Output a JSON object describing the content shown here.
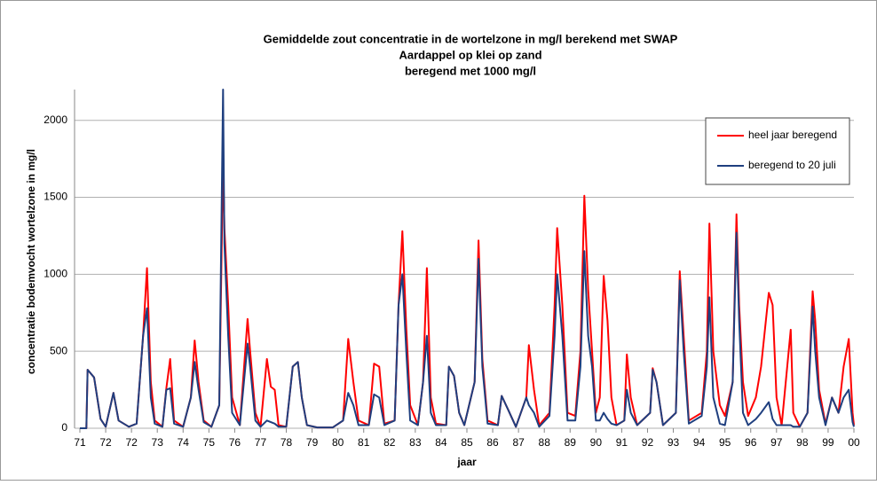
{
  "chart_data": {
    "type": "line",
    "title": "Gemiddelde zout concentratie in de wortelzone in mg/l berekend met SWAP",
    "subtitle": [
      "Aardappel op klei op zand",
      "beregend met  1000 mg/l"
    ],
    "xlabel": "jaar",
    "ylabel": "concentratie bodemvocht wortelzone in mg/l",
    "xlim": [
      0,
      30
    ],
    "xticks": [
      {
        "value": 0,
        "label": "71"
      },
      {
        "value": 1,
        "label": "72"
      },
      {
        "value": 2,
        "label": "72"
      },
      {
        "value": 3,
        "label": "73"
      },
      {
        "value": 4,
        "label": "74"
      },
      {
        "value": 5,
        "label": "75"
      },
      {
        "value": 6,
        "label": "76"
      },
      {
        "value": 7,
        "label": "77"
      },
      {
        "value": 8,
        "label": "78"
      },
      {
        "value": 9,
        "label": "79"
      },
      {
        "value": 10,
        "label": "80"
      },
      {
        "value": 11,
        "label": "81"
      },
      {
        "value": 12,
        "label": "82"
      },
      {
        "value": 13,
        "label": "83"
      },
      {
        "value": 14,
        "label": "84"
      },
      {
        "value": 15,
        "label": "85"
      },
      {
        "value": 16,
        "label": "86"
      },
      {
        "value": 17,
        "label": "87"
      },
      {
        "value": 18,
        "label": "88"
      },
      {
        "value": 19,
        "label": "89"
      },
      {
        "value": 20,
        "label": "90"
      },
      {
        "value": 21,
        "label": "91"
      },
      {
        "value": 22,
        "label": "92"
      },
      {
        "value": 23,
        "label": "93"
      },
      {
        "value": 24,
        "label": "94"
      },
      {
        "value": 25,
        "label": "95"
      },
      {
        "value": 26,
        "label": "96"
      },
      {
        "value": 27,
        "label": "97"
      },
      {
        "value": 28,
        "label": "98"
      },
      {
        "value": 29,
        "label": "99"
      },
      {
        "value": 30,
        "label": "00"
      }
    ],
    "ylim": [
      0,
      2200
    ],
    "yticks": [
      0,
      500,
      1000,
      1500,
      2000
    ],
    "grid": true,
    "legend": "upper right",
    "x": [
      0,
      0.25,
      0.3,
      0.55,
      0.8,
      1.0,
      1.3,
      1.5,
      1.9,
      2.2,
      2.45,
      2.6,
      2.75,
      2.9,
      3.2,
      3.35,
      3.5,
      3.65,
      4.0,
      4.3,
      4.45,
      4.6,
      4.8,
      5.1,
      5.4,
      5.55,
      5.6,
      5.75,
      5.9,
      6.2,
      6.5,
      6.6,
      6.8,
      7.0,
      7.25,
      7.4,
      7.55,
      7.7,
      8.0,
      8.25,
      8.45,
      8.6,
      8.8,
      9.2,
      9.8,
      10.2,
      10.4,
      10.6,
      10.8,
      11.2,
      11.4,
      11.6,
      11.8,
      12.2,
      12.35,
      12.5,
      12.65,
      12.8,
      13.1,
      13.3,
      13.45,
      13.6,
      13.8,
      14.2,
      14.3,
      14.5,
      14.7,
      14.9,
      15.3,
      15.45,
      15.6,
      15.8,
      16.2,
      16.35,
      16.6,
      16.9,
      17.3,
      17.4,
      17.6,
      17.8,
      18.2,
      18.4,
      18.5,
      18.7,
      18.9,
      19.2,
      19.4,
      19.55,
      19.7,
      19.85,
      20.0,
      20.15,
      20.3,
      20.45,
      20.6,
      20.8,
      21.1,
      21.2,
      21.35,
      21.6,
      22.1,
      22.2,
      22.35,
      22.6,
      23.1,
      23.25,
      23.4,
      23.6,
      24.1,
      24.3,
      24.4,
      24.55,
      24.8,
      25.0,
      25.3,
      25.45,
      25.55,
      25.7,
      25.9,
      26.2,
      26.4,
      26.7,
      26.85,
      27.0,
      27.2,
      27.55,
      27.65,
      27.9,
      28.2,
      28.4,
      28.5,
      28.65,
      28.9,
      29.15,
      29.4,
      29.6,
      29.8,
      29.95,
      30.0
    ],
    "series": [
      {
        "name": "heel jaar beregend",
        "color": "#ff0000",
        "values": [
          0,
          0,
          380,
          330,
          60,
          10,
          230,
          50,
          10,
          30,
          600,
          1040,
          300,
          50,
          10,
          260,
          450,
          50,
          10,
          200,
          570,
          300,
          50,
          10,
          150,
          1750,
          1300,
          800,
          200,
          20,
          710,
          500,
          100,
          10,
          450,
          270,
          250,
          20,
          10,
          400,
          430,
          200,
          20,
          5,
          5,
          50,
          580,
          300,
          50,
          20,
          420,
          400,
          30,
          50,
          800,
          1280,
          650,
          150,
          20,
          300,
          1040,
          200,
          30,
          20,
          400,
          340,
          100,
          20,
          300,
          1220,
          450,
          50,
          20,
          210,
          120,
          10,
          200,
          540,
          250,
          20,
          100,
          800,
          1300,
          800,
          100,
          80,
          500,
          1510,
          900,
          500,
          100,
          200,
          990,
          700,
          200,
          20,
          50,
          480,
          200,
          20,
          100,
          390,
          300,
          20,
          100,
          1020,
          600,
          50,
          100,
          500,
          1330,
          500,
          150,
          80,
          300,
          1390,
          800,
          300,
          80,
          200,
          400,
          880,
          800,
          200,
          20,
          640,
          100,
          10,
          100,
          890,
          700,
          250,
          30,
          200,
          100,
          400,
          580,
          100,
          20
        ]
      },
      {
        "name": "beregend to 20 juli",
        "color": "#1f3f7f",
        "values": [
          0,
          0,
          380,
          330,
          60,
          10,
          230,
          50,
          10,
          30,
          600,
          780,
          200,
          30,
          10,
          250,
          260,
          30,
          10,
          200,
          430,
          250,
          40,
          10,
          150,
          2200,
          1200,
          600,
          100,
          20,
          550,
          400,
          50,
          10,
          50,
          40,
          30,
          10,
          10,
          400,
          430,
          200,
          20,
          5,
          5,
          50,
          230,
          150,
          20,
          20,
          220,
          200,
          20,
          50,
          800,
          1000,
          500,
          50,
          20,
          300,
          600,
          100,
          20,
          20,
          400,
          340,
          100,
          20,
          300,
          1100,
          400,
          30,
          20,
          210,
          120,
          10,
          200,
          150,
          100,
          10,
          80,
          600,
          1000,
          600,
          50,
          50,
          400,
          1150,
          600,
          400,
          50,
          50,
          100,
          60,
          30,
          20,
          50,
          250,
          100,
          20,
          100,
          380,
          300,
          20,
          100,
          960,
          500,
          30,
          80,
          400,
          850,
          200,
          30,
          20,
          300,
          1270,
          700,
          100,
          20,
          60,
          100,
          170,
          60,
          20,
          20,
          20,
          10,
          10,
          100,
          790,
          500,
          200,
          20,
          200,
          100,
          200,
          250,
          40,
          10
        ]
      }
    ]
  }
}
